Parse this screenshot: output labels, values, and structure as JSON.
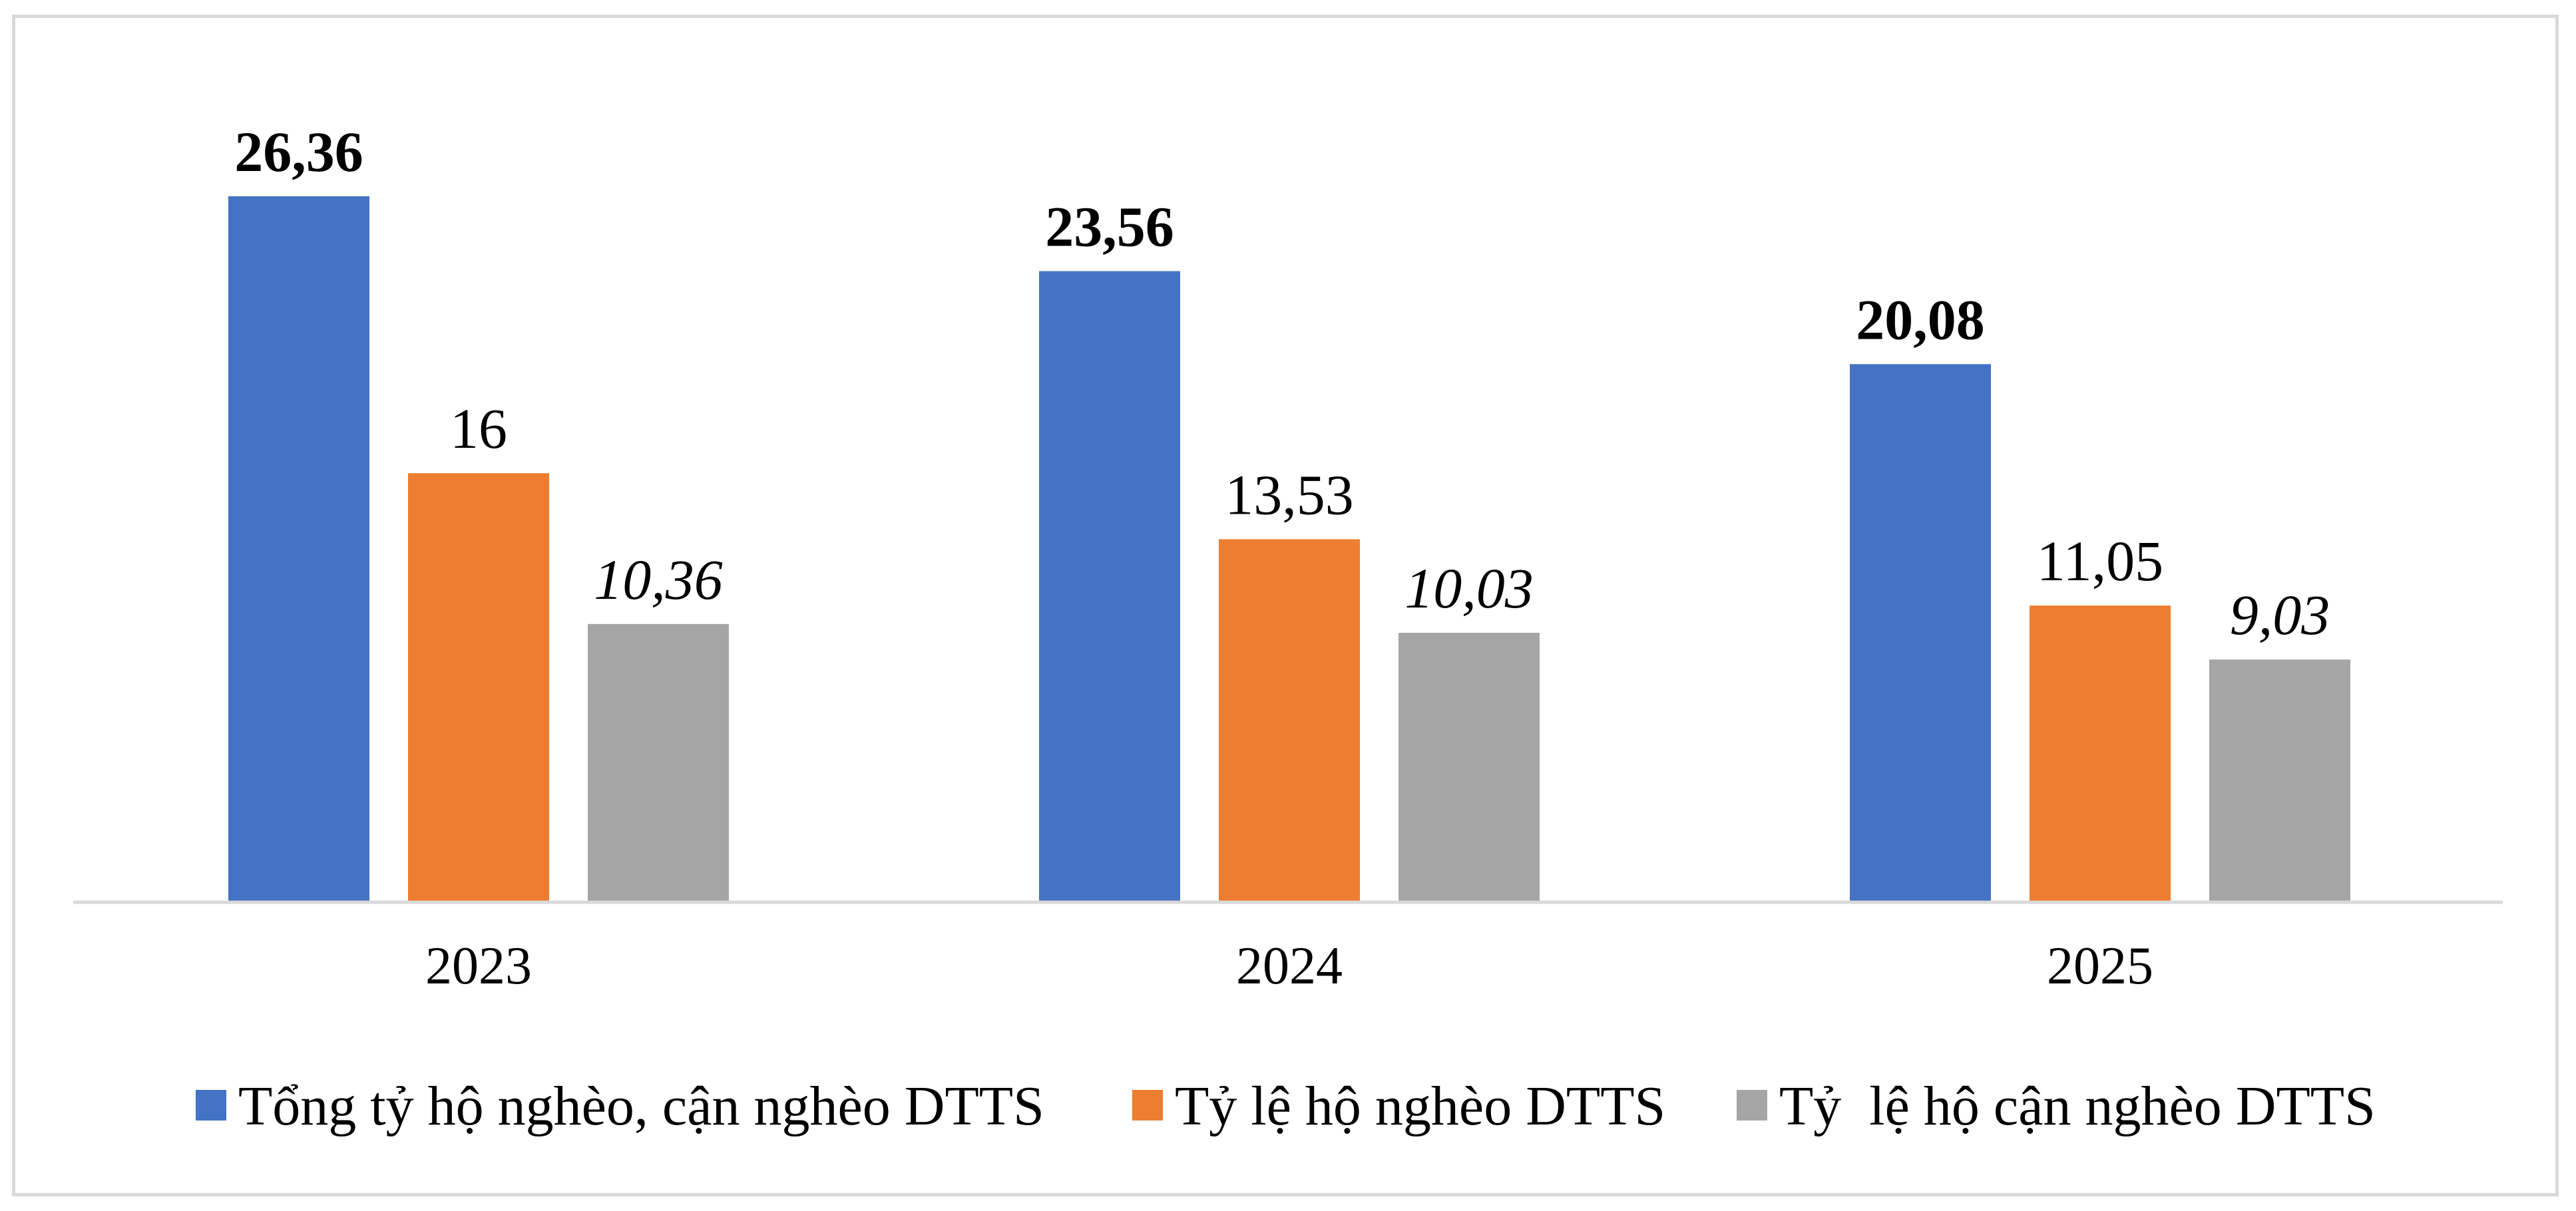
{
  "chart_data": {
    "type": "bar",
    "categories": [
      "2023",
      "2024",
      "2025"
    ],
    "series": [
      {
        "name": "Tổng tỷ hộ nghèo, cận nghèo DTTS",
        "values": [
          26.36,
          23.56,
          20.08
        ],
        "labels": [
          "26,36",
          "23,56",
          "20,08"
        ],
        "color": "#4472C4",
        "label_style": "bold"
      },
      {
        "name": "Tỷ lệ hộ nghèo DTTS",
        "values": [
          16,
          13.53,
          11.05
        ],
        "labels": [
          "16",
          "13,53",
          "11,05"
        ],
        "color": "#ED7D31",
        "label_style": "normal"
      },
      {
        "name": "Tỷ  lệ hộ cận nghèo DTTS",
        "values": [
          10.36,
          10.03,
          9.03
        ],
        "labels": [
          "10,36",
          "10,03",
          "9,03"
        ],
        "color": "#A5A5A5",
        "label_style": "italic"
      }
    ],
    "title": "",
    "xlabel": "",
    "ylabel": "",
    "ylim": [
      0,
      28
    ],
    "grid": false,
    "legend_position": "bottom"
  }
}
